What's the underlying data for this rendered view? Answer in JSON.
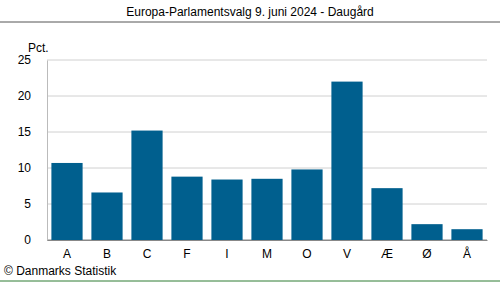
{
  "chart_data": {
    "type": "bar",
    "title": "Europa-Parlamentsvalg 9. juni 2024 - Daugård",
    "y_label": "Pct.",
    "annotations": [
      "© Danmarks Statistik"
    ],
    "categories": [
      "A",
      "B",
      "C",
      "F",
      "I",
      "M",
      "O",
      "V",
      "Æ",
      "Ø",
      "Å"
    ],
    "values": [
      10.7,
      6.6,
      15.2,
      8.8,
      8.4,
      8.5,
      9.8,
      22.0,
      7.2,
      2.2,
      1.5
    ],
    "color": "#005f8e",
    "ylim": [
      0,
      25
    ],
    "yticks": [
      0,
      5,
      10,
      15,
      20,
      25
    ],
    "grid": true
  }
}
